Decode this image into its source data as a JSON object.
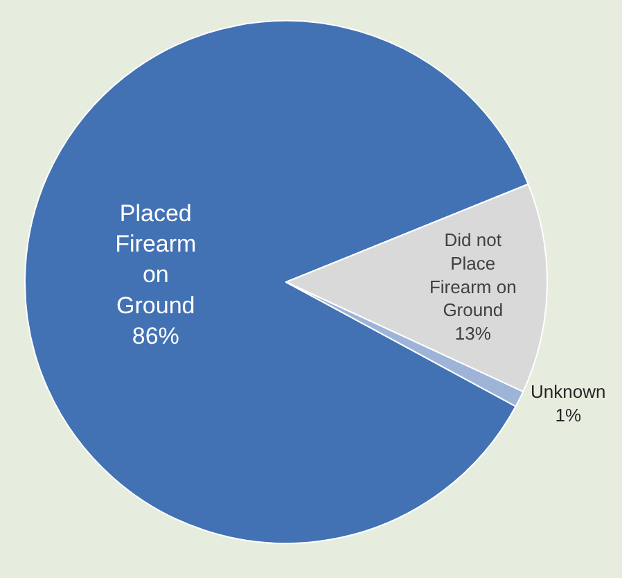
{
  "chart_data": {
    "type": "pie",
    "categories": [
      "Placed Firearm on Ground",
      "Did not Place Firearm on Ground",
      "Unknown"
    ],
    "values": [
      86,
      13,
      1
    ],
    "value_labels": [
      "86%",
      "13%",
      "1%"
    ],
    "colors": [
      "#4272b4",
      "#d9d9d9",
      "#9db4d8"
    ],
    "legend": false
  }
}
